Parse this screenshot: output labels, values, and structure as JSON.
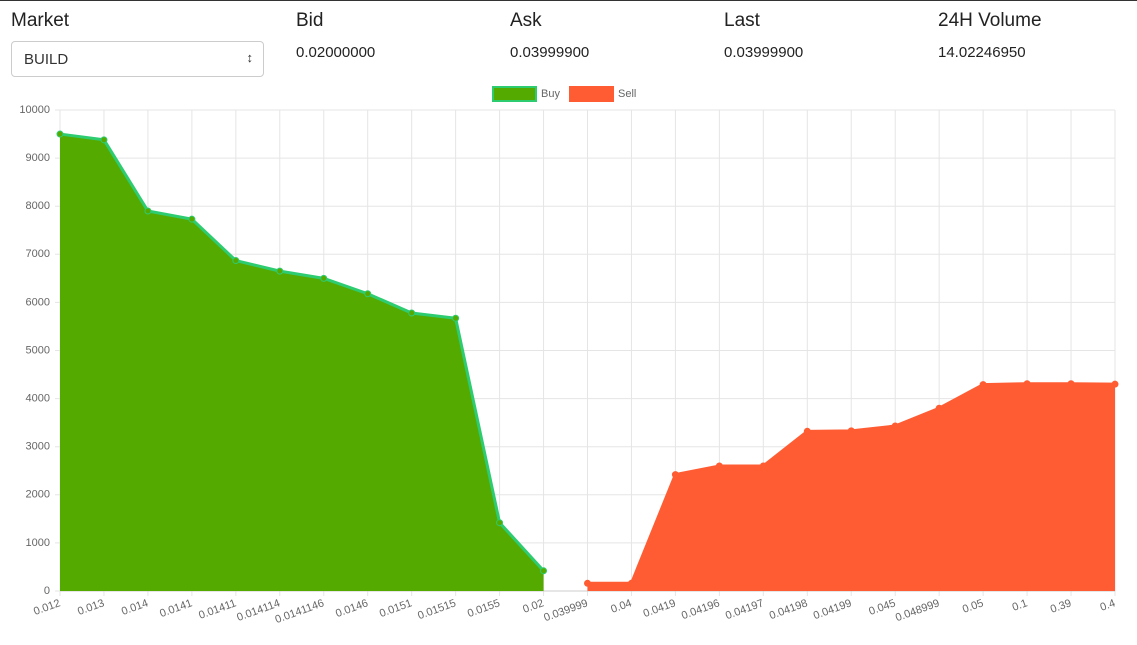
{
  "header": {
    "market_label": "Market",
    "market_value": "BUILD",
    "bid_label": "Bid",
    "bid": "0.02000000",
    "ask_label": "Ask",
    "ask": "0.03999900",
    "last_label": "Last",
    "last": "0.03999900",
    "volume_label": "24H Volume",
    "volume": "14.02246950"
  },
  "chart_data": {
    "type": "area",
    "categories": [
      "0.012",
      "0.013",
      "0.014",
      "0.0141",
      "0.01411",
      "0.014114",
      "0.0141146",
      "0.0146",
      "0.0151",
      "0.01515",
      "0.0155",
      "0.02",
      "0.039999",
      "0.04",
      "0.0419",
      "0.04196",
      "0.04197",
      "0.04198",
      "0.04199",
      "0.045",
      "0.048999",
      "0.05",
      "0.1",
      "0.39",
      "0.4"
    ],
    "series": [
      {
        "name": "Buy",
        "color": "#55aa00",
        "line_color": "#2ecc71",
        "values": [
          9500,
          9380,
          7900,
          7730,
          6870,
          6650,
          6500,
          6180,
          5780,
          5670,
          1420,
          420,
          null,
          null,
          null,
          null,
          null,
          null,
          null,
          null,
          null,
          null,
          null,
          null,
          null
        ]
      },
      {
        "name": "Sell",
        "color": "#ff5c33",
        "line_color": "#ff5c33",
        "values": [
          null,
          null,
          null,
          null,
          null,
          null,
          null,
          null,
          null,
          null,
          null,
          null,
          160,
          160,
          2420,
          2600,
          2600,
          3320,
          3330,
          3430,
          3800,
          4290,
          4310,
          4310,
          4300
        ]
      }
    ],
    "ylim": [
      0,
      10000
    ],
    "yticks": [
      0,
      1000,
      2000,
      3000,
      4000,
      5000,
      6000,
      7000,
      8000,
      9000,
      10000
    ],
    "grid": true
  }
}
